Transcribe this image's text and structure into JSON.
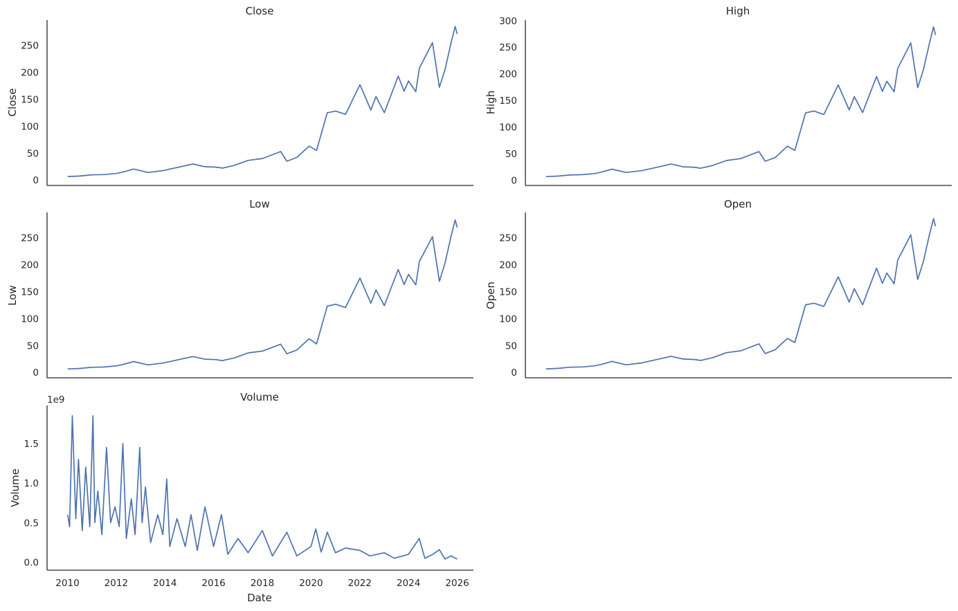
{
  "chart_data": [
    {
      "type": "line",
      "title": "Close",
      "xlabel": "",
      "ylabel": "Close",
      "ylim": [
        -10,
        297
      ],
      "yticks": [
        0,
        50,
        100,
        150,
        200,
        250
      ],
      "ytick_labels": [
        "0",
        "50",
        "100",
        "150",
        "200",
        "250"
      ],
      "xlim": [
        "2009-03-01",
        "2026-09-01"
      ],
      "x_tick_labels_shown": false,
      "color": "#4c72b0",
      "x": [
        "2010-01-04",
        "2010-07-01",
        "2011-01-03",
        "2011-07-01",
        "2012-01-03",
        "2012-04-10",
        "2012-09-19",
        "2013-04-19",
        "2013-12-02",
        "2014-06-02",
        "2015-02-23",
        "2015-08-24",
        "2016-02-01",
        "2016-05-12",
        "2016-11-01",
        "2017-06-01",
        "2018-01-02",
        "2018-10-03",
        "2019-01-03",
        "2019-06-03",
        "2019-12-02",
        "2020-03-23",
        "2020-08-31",
        "2021-01-04",
        "2021-06-01",
        "2022-01-03",
        "2022-06-16",
        "2022-09-01",
        "2023-01-03",
        "2023-07-31",
        "2023-10-27",
        "2024-01-02",
        "2024-04-19",
        "2024-06-12",
        "2024-12-26",
        "2025-04-08",
        "2025-07-01",
        "2025-10-01",
        "2025-12-01",
        "2025-12-31"
      ],
      "y": [
        6.6,
        7.5,
        9.6,
        10.2,
        12.2,
        14.8,
        20.4,
        14.2,
        17.5,
        22.5,
        29.8,
        24.8,
        24.0,
        22.2,
        27.0,
        36.5,
        40.0,
        53.0,
        35.0,
        42.0,
        63.0,
        55.0,
        125.0,
        128.0,
        122.0,
        177.0,
        130.0,
        155.0,
        125.0,
        193.0,
        165.0,
        184.0,
        164.0,
        208.0,
        255.0,
        172.0,
        205.0,
        255.0,
        285.0,
        271.0
      ]
    },
    {
      "type": "line",
      "title": "High",
      "xlabel": "",
      "ylabel": "High",
      "ylim": [
        -10,
        301
      ],
      "yticks": [
        0,
        50,
        100,
        150,
        200,
        250,
        300
      ],
      "ytick_labels": [
        "0",
        "50",
        "100",
        "150",
        "200",
        "250",
        "300"
      ],
      "xlim": [
        "2009-03-01",
        "2026-09-01"
      ],
      "x_tick_labels_shown": false,
      "color": "#4c72b0",
      "x": [
        "2010-01-04",
        "2010-07-01",
        "2011-01-03",
        "2011-07-01",
        "2012-01-03",
        "2012-04-10",
        "2012-09-19",
        "2013-04-19",
        "2013-12-02",
        "2014-06-02",
        "2015-02-23",
        "2015-08-24",
        "2016-02-01",
        "2016-05-12",
        "2016-11-01",
        "2017-06-01",
        "2018-01-02",
        "2018-10-03",
        "2019-01-03",
        "2019-06-03",
        "2019-12-02",
        "2020-03-23",
        "2020-08-31",
        "2021-01-04",
        "2021-06-01",
        "2022-01-03",
        "2022-06-16",
        "2022-09-01",
        "2023-01-03",
        "2023-07-31",
        "2023-10-27",
        "2024-01-02",
        "2024-04-19",
        "2024-06-12",
        "2024-12-26",
        "2025-04-08",
        "2025-07-01",
        "2025-10-01",
        "2025-12-01",
        "2025-12-31"
      ],
      "y": [
        6.7,
        7.6,
        9.7,
        10.3,
        12.4,
        15.0,
        20.6,
        14.4,
        17.7,
        22.7,
        30.2,
        25.0,
        24.3,
        22.4,
        27.3,
        36.9,
        40.5,
        53.6,
        35.6,
        42.5,
        63.8,
        56.0,
        126.5,
        130.0,
        123.5,
        179.0,
        132.0,
        157.0,
        127.0,
        195.0,
        167.0,
        186.0,
        166.0,
        210.0,
        258.0,
        174.0,
        207.0,
        257.0,
        288.0,
        273.0
      ]
    },
    {
      "type": "line",
      "title": "Low",
      "xlabel": "",
      "ylabel": "Low",
      "ylim": [
        -10,
        297
      ],
      "yticks": [
        0,
        50,
        100,
        150,
        200,
        250
      ],
      "ytick_labels": [
        "0",
        "50",
        "100",
        "150",
        "200",
        "250"
      ],
      "xlim": [
        "2009-03-01",
        "2026-09-01"
      ],
      "x_tick_labels_shown": false,
      "color": "#4c72b0",
      "x": [
        "2010-01-04",
        "2010-07-01",
        "2011-01-03",
        "2011-07-01",
        "2012-01-03",
        "2012-04-10",
        "2012-09-19",
        "2013-04-19",
        "2013-12-02",
        "2014-06-02",
        "2015-02-23",
        "2015-08-24",
        "2016-02-01",
        "2016-05-12",
        "2016-11-01",
        "2017-06-01",
        "2018-01-02",
        "2018-10-03",
        "2019-01-03",
        "2019-06-03",
        "2019-12-02",
        "2020-03-23",
        "2020-08-31",
        "2021-01-04",
        "2021-06-01",
        "2022-01-03",
        "2022-06-16",
        "2022-09-01",
        "2023-01-03",
        "2023-07-31",
        "2023-10-27",
        "2024-01-02",
        "2024-04-19",
        "2024-06-12",
        "2024-12-26",
        "2025-04-08",
        "2025-07-01",
        "2025-10-01",
        "2025-12-01",
        "2025-12-31"
      ],
      "y": [
        6.5,
        7.4,
        9.5,
        10.1,
        12.1,
        14.6,
        20.2,
        14.0,
        17.3,
        22.3,
        29.4,
        24.5,
        23.8,
        22.0,
        26.8,
        36.2,
        39.6,
        52.4,
        34.6,
        41.6,
        62.4,
        53.0,
        123.0,
        126.5,
        120.5,
        175.0,
        128.5,
        153.0,
        124.0,
        191.0,
        163.0,
        182.0,
        162.5,
        206.0,
        252.0,
        169.0,
        203.0,
        253.0,
        283.0,
        269.0
      ]
    },
    {
      "type": "line",
      "title": "Open",
      "xlabel": "",
      "ylabel": "Open",
      "ylim": [
        -10,
        297
      ],
      "yticks": [
        0,
        50,
        100,
        150,
        200,
        250
      ],
      "ytick_labels": [
        "0",
        "50",
        "100",
        "150",
        "200",
        "250"
      ],
      "xlim": [
        "2009-03-01",
        "2026-09-01"
      ],
      "x_tick_labels_shown": false,
      "color": "#4c72b0",
      "x": [
        "2010-01-04",
        "2010-07-01",
        "2011-01-03",
        "2011-07-01",
        "2012-01-03",
        "2012-04-10",
        "2012-09-19",
        "2013-04-19",
        "2013-12-02",
        "2014-06-02",
        "2015-02-23",
        "2015-08-24",
        "2016-02-01",
        "2016-05-12",
        "2016-11-01",
        "2017-06-01",
        "2018-01-02",
        "2018-10-03",
        "2019-01-03",
        "2019-06-03",
        "2019-12-02",
        "2020-03-23",
        "2020-08-31",
        "2021-01-04",
        "2021-06-01",
        "2022-01-03",
        "2022-06-16",
        "2022-09-01",
        "2023-01-03",
        "2023-07-31",
        "2023-10-27",
        "2024-01-02",
        "2024-04-19",
        "2024-06-12",
        "2024-12-26",
        "2025-04-08",
        "2025-07-01",
        "2025-10-01",
        "2025-12-01",
        "2025-12-31"
      ],
      "y": [
        6.6,
        7.5,
        9.6,
        10.2,
        12.2,
        14.8,
        20.4,
        14.2,
        17.5,
        22.5,
        29.9,
        24.8,
        24.1,
        22.2,
        27.1,
        36.6,
        40.1,
        53.1,
        35.1,
        42.1,
        63.2,
        55.5,
        125.5,
        128.5,
        122.5,
        177.5,
        130.5,
        155.5,
        125.5,
        193.5,
        165.5,
        184.5,
        164.5,
        208.5,
        255.5,
        172.5,
        205.5,
        255.5,
        285.5,
        271.5
      ]
    },
    {
      "type": "line",
      "title": "Volume",
      "xlabel": "Date",
      "ylabel": "Volume",
      "offset_text": "1e9",
      "ylim": [
        -0.1,
        1.98
      ],
      "yticks": [
        0.0,
        0.5,
        1.0,
        1.5
      ],
      "ytick_labels": [
        "0.0",
        "0.5",
        "1.0",
        "1.5"
      ],
      "xlim": [
        "2009-03-01",
        "2026-09-01"
      ],
      "xticks": [
        "2010-01-01",
        "2012-01-01",
        "2014-01-01",
        "2016-01-01",
        "2018-01-01",
        "2020-01-01",
        "2022-01-01",
        "2024-01-01",
        "2026-01-01"
      ],
      "xtick_labels": [
        "2010",
        "2012",
        "2014",
        "2016",
        "2018",
        "2020",
        "2022",
        "2024",
        "2026"
      ],
      "x_tick_labels_shown": true,
      "color": "#4c72b0",
      "x": [
        "2010-01-04",
        "2010-02-01",
        "2010-03-15",
        "2010-05-06",
        "2010-06-15",
        "2010-08-10",
        "2010-10-01",
        "2010-12-01",
        "2011-01-18",
        "2011-02-15",
        "2011-04-01",
        "2011-06-01",
        "2011-08-09",
        "2011-10-10",
        "2011-12-15",
        "2012-02-15",
        "2012-04-10",
        "2012-06-01",
        "2012-08-15",
        "2012-10-10",
        "2012-12-20",
        "2013-01-24",
        "2013-03-15",
        "2013-06-01",
        "2013-09-15",
        "2013-12-01",
        "2014-01-28",
        "2014-03-15",
        "2014-07-01",
        "2014-11-01",
        "2015-01-28",
        "2015-05-01",
        "2015-08-24",
        "2016-01-01",
        "2016-04-27",
        "2016-08-01",
        "2017-01-01",
        "2017-06-01",
        "2018-01-01",
        "2018-06-01",
        "2019-01-03",
        "2019-06-01",
        "2020-01-01",
        "2020-03-12",
        "2020-06-01",
        "2020-09-01",
        "2021-01-01",
        "2021-06-01",
        "2022-01-01",
        "2022-06-01",
        "2023-01-01",
        "2023-06-01",
        "2024-01-01",
        "2024-06-10",
        "2024-09-01",
        "2025-01-01",
        "2025-04-07",
        "2025-07-01",
        "2025-10-01",
        "2025-12-31"
      ],
      "y": [
        0.6,
        0.45,
        1.85,
        0.55,
        1.3,
        0.4,
        1.2,
        0.45,
        1.85,
        0.5,
        0.9,
        0.35,
        1.45,
        0.5,
        0.7,
        0.45,
        1.5,
        0.3,
        0.8,
        0.35,
        1.45,
        0.5,
        0.95,
        0.25,
        0.6,
        0.35,
        1.05,
        0.2,
        0.55,
        0.2,
        0.6,
        0.15,
        0.7,
        0.2,
        0.6,
        0.1,
        0.3,
        0.12,
        0.4,
        0.08,
        0.38,
        0.08,
        0.2,
        0.42,
        0.13,
        0.38,
        0.12,
        0.18,
        0.15,
        0.08,
        0.12,
        0.05,
        0.1,
        0.3,
        0.05,
        0.1,
        0.16,
        0.04,
        0.08,
        0.04
      ]
    }
  ]
}
